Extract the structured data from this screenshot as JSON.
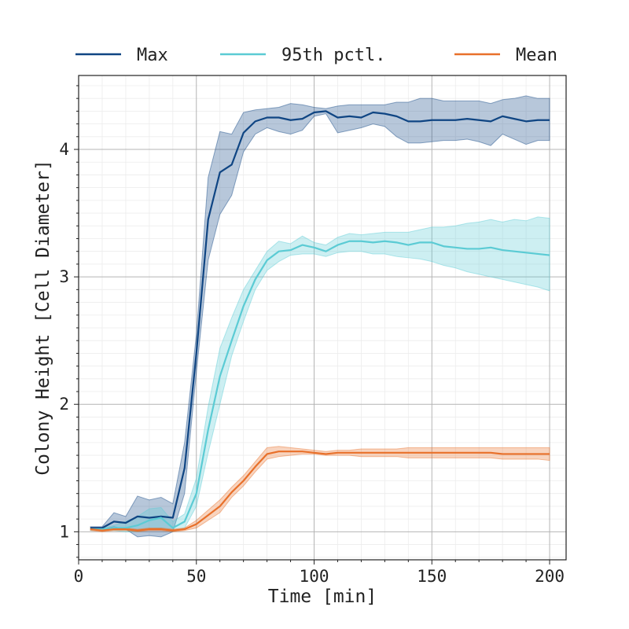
{
  "chart_data": {
    "type": "line",
    "xlabel": "Time [min]",
    "ylabel": "Colony Height [Cell Diameter]",
    "xlim": [
      0,
      207
    ],
    "ylim": [
      0.78,
      4.58
    ],
    "xticks": [
      0,
      50,
      100,
      150,
      200
    ],
    "xtick_labels": [
      "0",
      "50",
      "100",
      "150",
      "200"
    ],
    "yticks": [
      1,
      2,
      3,
      4
    ],
    "ytick_labels": [
      "1",
      "2",
      "3",
      "4"
    ],
    "grid": true,
    "legend_position": "top, outside plot, single row",
    "x": [
      5,
      10,
      15,
      20,
      25,
      30,
      35,
      40,
      45,
      50,
      55,
      60,
      65,
      70,
      75,
      80,
      85,
      90,
      95,
      100,
      105,
      110,
      115,
      120,
      125,
      130,
      135,
      140,
      145,
      150,
      155,
      160,
      165,
      170,
      175,
      180,
      185,
      190,
      195,
      200
    ],
    "series": [
      {
        "name": "Max",
        "color": "#0f4583",
        "values": [
          1.03,
          1.03,
          1.08,
          1.07,
          1.12,
          1.11,
          1.12,
          1.11,
          1.5,
          2.4,
          3.45,
          3.82,
          3.88,
          4.13,
          4.22,
          4.25,
          4.25,
          4.23,
          4.24,
          4.29,
          4.3,
          4.25,
          4.26,
          4.25,
          4.29,
          4.28,
          4.26,
          4.22,
          4.22,
          4.23,
          4.23,
          4.23,
          4.24,
          4.23,
          4.22,
          4.26,
          4.24,
          4.22,
          4.23,
          4.23
        ],
        "lower": [
          1.03,
          1.02,
          1.04,
          1.02,
          0.96,
          0.97,
          0.96,
          1.0,
          1.3,
          2.25,
          3.13,
          3.49,
          3.64,
          3.98,
          4.12,
          4.17,
          4.14,
          4.12,
          4.15,
          4.26,
          4.28,
          4.13,
          4.15,
          4.17,
          4.2,
          4.18,
          4.1,
          4.05,
          4.05,
          4.06,
          4.07,
          4.07,
          4.08,
          4.06,
          4.03,
          4.12,
          4.08,
          4.04,
          4.07,
          4.07
        ],
        "upper": [
          1.04,
          1.04,
          1.15,
          1.12,
          1.28,
          1.25,
          1.27,
          1.22,
          1.7,
          2.55,
          3.78,
          4.14,
          4.12,
          4.29,
          4.31,
          4.32,
          4.33,
          4.36,
          4.35,
          4.33,
          4.32,
          4.34,
          4.35,
          4.35,
          4.35,
          4.35,
          4.37,
          4.37,
          4.4,
          4.4,
          4.38,
          4.38,
          4.38,
          4.38,
          4.36,
          4.39,
          4.4,
          4.42,
          4.4,
          4.4
        ]
      },
      {
        "name": "95th pctl.",
        "color": "#5bcbd4",
        "values": [
          1.02,
          1.02,
          1.03,
          1.03,
          1.05,
          1.09,
          1.11,
          1.03,
          1.08,
          1.3,
          1.8,
          2.22,
          2.5,
          2.77,
          2.98,
          3.13,
          3.2,
          3.21,
          3.25,
          3.23,
          3.2,
          3.25,
          3.28,
          3.28,
          3.27,
          3.28,
          3.27,
          3.25,
          3.27,
          3.27,
          3.24,
          3.23,
          3.22,
          3.22,
          3.23,
          3.21,
          3.2,
          3.19,
          3.18,
          3.17
        ],
        "lower": [
          1.01,
          1.01,
          1.01,
          1.0,
          1.0,
          1.02,
          1.03,
          1.0,
          1.03,
          1.2,
          1.62,
          2.0,
          2.38,
          2.65,
          2.9,
          3.05,
          3.12,
          3.17,
          3.18,
          3.18,
          3.16,
          3.19,
          3.2,
          3.2,
          3.18,
          3.18,
          3.16,
          3.15,
          3.14,
          3.12,
          3.09,
          3.07,
          3.04,
          3.02,
          3.0,
          2.98,
          2.96,
          2.94,
          2.92,
          2.89
        ],
        "upper": [
          1.03,
          1.03,
          1.05,
          1.08,
          1.12,
          1.18,
          1.19,
          1.08,
          1.14,
          1.42,
          1.98,
          2.44,
          2.68,
          2.9,
          3.05,
          3.2,
          3.28,
          3.26,
          3.32,
          3.27,
          3.25,
          3.31,
          3.34,
          3.33,
          3.34,
          3.35,
          3.35,
          3.35,
          3.37,
          3.39,
          3.39,
          3.4,
          3.42,
          3.43,
          3.45,
          3.43,
          3.45,
          3.44,
          3.47,
          3.46
        ]
      },
      {
        "name": "Mean",
        "color": "#e8702a",
        "values": [
          1.02,
          1.01,
          1.02,
          1.02,
          1.01,
          1.02,
          1.02,
          1.01,
          1.02,
          1.06,
          1.13,
          1.2,
          1.31,
          1.4,
          1.51,
          1.61,
          1.63,
          1.63,
          1.63,
          1.62,
          1.61,
          1.62,
          1.62,
          1.62,
          1.62,
          1.62,
          1.62,
          1.62,
          1.62,
          1.62,
          1.62,
          1.62,
          1.62,
          1.62,
          1.62,
          1.61,
          1.61,
          1.61,
          1.61,
          1.61
        ],
        "lower": [
          1.01,
          1.0,
          1.01,
          1.01,
          1.0,
          1.01,
          1.01,
          1.0,
          1.01,
          1.03,
          1.09,
          1.15,
          1.27,
          1.36,
          1.47,
          1.57,
          1.59,
          1.6,
          1.61,
          1.61,
          1.6,
          1.6,
          1.6,
          1.59,
          1.59,
          1.59,
          1.59,
          1.58,
          1.58,
          1.58,
          1.58,
          1.58,
          1.58,
          1.58,
          1.58,
          1.57,
          1.57,
          1.57,
          1.57,
          1.56
        ],
        "upper": [
          1.03,
          1.02,
          1.03,
          1.03,
          1.02,
          1.03,
          1.03,
          1.02,
          1.03,
          1.09,
          1.17,
          1.25,
          1.35,
          1.44,
          1.55,
          1.66,
          1.67,
          1.66,
          1.65,
          1.64,
          1.63,
          1.64,
          1.64,
          1.65,
          1.65,
          1.65,
          1.65,
          1.66,
          1.66,
          1.66,
          1.66,
          1.66,
          1.66,
          1.66,
          1.66,
          1.66,
          1.66,
          1.66,
          1.66,
          1.66
        ]
      }
    ]
  }
}
